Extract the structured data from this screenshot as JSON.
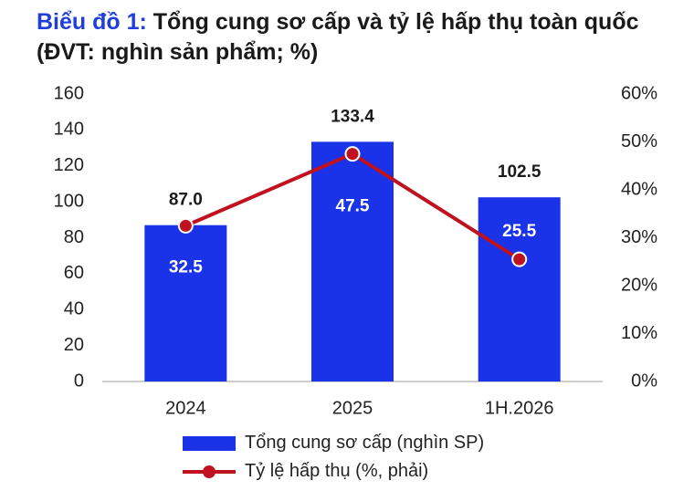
{
  "title": {
    "prefix": "Biểu đồ 1:",
    "main": " Tổng cung sơ cấp và tỷ lệ hấp thụ toàn quốc",
    "unit": "(ĐVT: nghìn sản phẩm; %)"
  },
  "colors": {
    "bar": "#1a33e8",
    "line": "#c0111f",
    "title_prefix": "#1f3fd6"
  },
  "chart_data": {
    "type": "bar",
    "categories": [
      "2024",
      "2025",
      "1H.2026"
    ],
    "series": [
      {
        "name": "Tổng cung sơ cấp (nghìn SP)",
        "type": "bar",
        "axis": "left",
        "values": [
          87.0,
          133.4,
          102.5
        ],
        "labels": [
          "87.0",
          "133.4",
          "102.5"
        ]
      },
      {
        "name": "Tỷ lệ hấp thụ (%, phải)",
        "type": "line",
        "axis": "right",
        "values": [
          32.5,
          47.5,
          25.5
        ],
        "labels": [
          "32.5",
          "47.5",
          "25.5"
        ]
      }
    ],
    "ylim": [
      0,
      160
    ],
    "y_ticks": [
      "0",
      "20",
      "40",
      "60",
      "80",
      "100",
      "120",
      "140",
      "160"
    ],
    "y2lim": [
      0,
      60
    ],
    "y2_ticks": [
      "0%",
      "10%",
      "20%",
      "30%",
      "40%",
      "50%",
      "60%"
    ],
    "grid": false,
    "legend_position": "bottom"
  }
}
